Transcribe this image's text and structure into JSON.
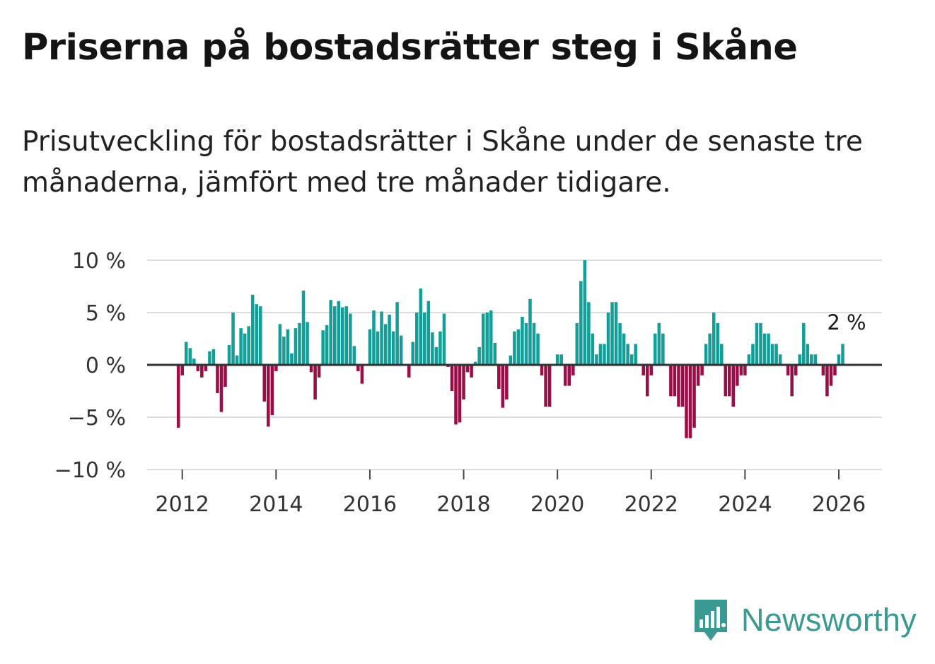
{
  "title": "Priserna på bostadsrätter steg i Skåne",
  "subtitle": "Prisutveckling för bostadsrätter i Skåne under de senaste tre månaderna, jämfört med tre månader tidigare.",
  "brand": "Newsworthy",
  "colors": {
    "positive": "#139e97",
    "negative": "#9b0d47",
    "zero_line": "#333333",
    "grid": "#dddddd"
  },
  "chart_data": {
    "type": "bar",
    "title": "Priserna på bostadsrätter steg i Skåne",
    "xlabel": "",
    "ylabel": "",
    "ylim": [
      -10,
      10
    ],
    "yticks": [
      10,
      5,
      0,
      -5,
      -10
    ],
    "ytick_labels": [
      "10 %",
      "5 %",
      "0 %",
      "−5 %",
      "−10 %"
    ],
    "xticks": [
      2012,
      2014,
      2016,
      2018,
      2020,
      2022,
      2024,
      2026
    ],
    "xlim": [
      2011.25,
      2026.92
    ],
    "annotation": "2 %",
    "start_year": 2011,
    "start_month": 12,
    "values": [
      -6,
      -1,
      2.2,
      1.6,
      0.6,
      -0.6,
      -1.2,
      -0.6,
      1.3,
      1.5,
      -2.7,
      -4.5,
      -2.1,
      1.9,
      5,
      0.9,
      3.5,
      3,
      3.7,
      6.7,
      5.8,
      5.6,
      -3.5,
      -5.9,
      -4.8,
      -0.6,
      3.9,
      2.7,
      3.4,
      1.1,
      3.5,
      4,
      7.1,
      4.1,
      -0.7,
      -3.3,
      -1.2,
      3.3,
      3.8,
      6.2,
      5.6,
      6.1,
      5.5,
      5.6,
      4.9,
      1.8,
      -0.6,
      -1.8,
      0,
      3.4,
      5.2,
      3.2,
      5.1,
      3.9,
      4.8,
      3.2,
      6,
      2.8,
      0,
      -1.2,
      2.2,
      5,
      7.3,
      5,
      6.1,
      3.1,
      1.7,
      3.2,
      4.9,
      -0.2,
      -2.5,
      -5.7,
      -5.5,
      -3.3,
      -0.7,
      -1.2,
      0.3,
      1.7,
      4.9,
      5,
      5.2,
      2.1,
      -2.3,
      -4.1,
      -3.3,
      0.9,
      3.2,
      3.4,
      4.6,
      4,
      6.3,
      4,
      3,
      -1,
      -4,
      -4,
      0,
      1,
      1,
      -2,
      -2,
      -1,
      4,
      8,
      10,
      6,
      3,
      1,
      2,
      2,
      5,
      6,
      6,
      4,
      3,
      2,
      1,
      2,
      0,
      -1,
      -3,
      -1,
      3,
      4,
      3,
      0,
      -3,
      -3,
      -4,
      -4,
      -7,
      -7,
      -6,
      -2,
      -1,
      2,
      3,
      5,
      4,
      2,
      -3,
      -3,
      -4,
      -2,
      -1,
      -1,
      1,
      2,
      4,
      4,
      3,
      3,
      2,
      2,
      1,
      0,
      -1,
      -3,
      -1,
      1,
      4,
      2,
      1,
      1,
      0,
      -1,
      -3,
      -2,
      -1,
      1,
      2
    ]
  }
}
